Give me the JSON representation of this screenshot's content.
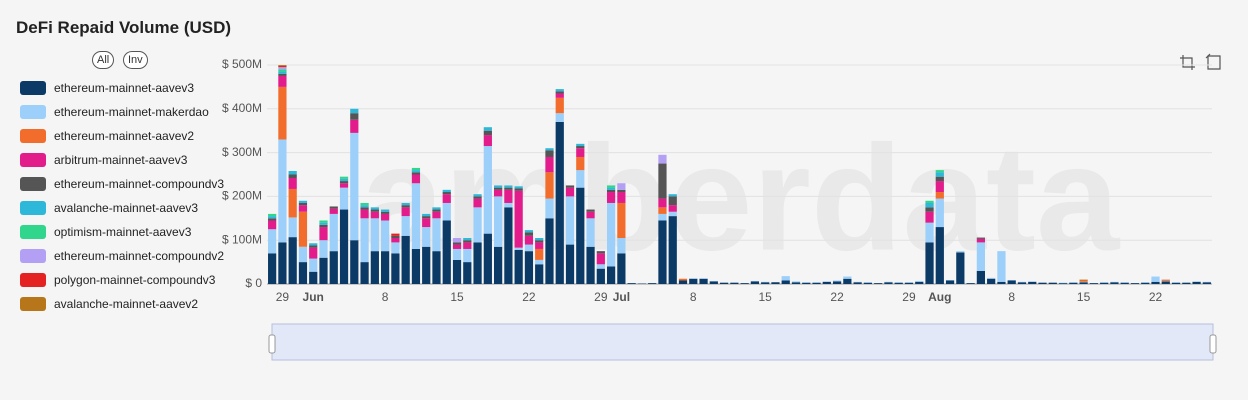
{
  "chart_data": {
    "type": "stacked_bar",
    "title": "DeFi Repaid Volume (USD)",
    "legend_buttons": [
      "All",
      "Inv"
    ],
    "watermark": "amberdata",
    "categories": [
      null,
      "29",
      null,
      null,
      "Jun",
      null,
      null,
      null,
      null,
      null,
      null,
      "8",
      null,
      null,
      null,
      null,
      null,
      null,
      "15",
      null,
      null,
      null,
      null,
      null,
      null,
      "22",
      null,
      null,
      null,
      null,
      null,
      null,
      "29",
      null,
      "Jul",
      null,
      null,
      null,
      null,
      null,
      null,
      "8",
      null,
      null,
      null,
      null,
      null,
      null,
      "15",
      null,
      null,
      null,
      null,
      null,
      null,
      "22",
      null,
      null,
      null,
      null,
      null,
      null,
      "29",
      null,
      null,
      "Aug",
      null,
      null,
      null,
      null,
      null,
      null,
      "8",
      null,
      null,
      null,
      null,
      null,
      null,
      "15",
      null,
      null,
      null,
      null,
      null,
      null,
      "22",
      null,
      null,
      null,
      null,
      null
    ],
    "ylim": [
      0,
      500
    ],
    "yticks": [
      {
        "value": 0,
        "label": "$ 0"
      },
      {
        "value": 100,
        "label": "$ 100M"
      },
      {
        "value": 200,
        "label": "$ 200M"
      },
      {
        "value": 300,
        "label": "$ 300M"
      },
      {
        "value": 400,
        "label": "$ 400M"
      },
      {
        "value": 500,
        "label": "$ 500M"
      }
    ],
    "grid": true,
    "series": [
      {
        "name": "ethereum-mainnet-aavev3",
        "color": "#0b3a67",
        "values": [
          70,
          95,
          107,
          50,
          28,
          60,
          75,
          170,
          100,
          50,
          75,
          75,
          70,
          110,
          80,
          85,
          75,
          145,
          55,
          50,
          95,
          115,
          85,
          175,
          78,
          75,
          45,
          150,
          370,
          90,
          220,
          85,
          35,
          40,
          70,
          2,
          1,
          2,
          145,
          155,
          8,
          12,
          12,
          6,
          3,
          3,
          2,
          6,
          4,
          4,
          8,
          4,
          3,
          3,
          5,
          6,
          12,
          4,
          3,
          2,
          4,
          3,
          3,
          5,
          95,
          130,
          8,
          72,
          2,
          30,
          12,
          5,
          8,
          4,
          5,
          3,
          3,
          2,
          3,
          4,
          2,
          3,
          4,
          3,
          2,
          3,
          5,
          6,
          3,
          3,
          5,
          4
        ]
      },
      {
        "name": "ethereum-mainnet-makerdao",
        "color": "#9ccffa",
        "values": [
          55,
          235,
          45,
          35,
          30,
          40,
          85,
          50,
          245,
          100,
          75,
          70,
          25,
          45,
          150,
          45,
          75,
          40,
          25,
          30,
          80,
          200,
          115,
          10,
          5,
          15,
          10,
          45,
          20,
          110,
          40,
          65,
          10,
          145,
          35,
          0,
          0,
          0,
          15,
          10,
          0,
          1,
          1,
          1,
          0,
          0,
          0,
          1,
          1,
          0,
          10,
          2,
          1,
          1,
          1,
          2,
          5,
          1,
          1,
          0,
          1,
          1,
          1,
          2,
          45,
          65,
          1,
          3,
          0,
          65,
          2,
          70,
          1,
          1,
          1,
          0,
          0,
          1,
          1,
          1,
          0,
          1,
          1,
          1,
          0,
          1,
          12,
          1,
          1,
          0,
          1,
          1
        ]
      },
      {
        "name": "ethereum-mainnet-aavev2",
        "color": "#f26d2b",
        "values": [
          0,
          120,
          65,
          80,
          0,
          0,
          0,
          0,
          0,
          0,
          0,
          0,
          0,
          0,
          0,
          0,
          0,
          0,
          0,
          0,
          0,
          0,
          0,
          0,
          0,
          0,
          25,
          60,
          35,
          0,
          30,
          0,
          0,
          0,
          80,
          0,
          0,
          0,
          15,
          0,
          4,
          0,
          0,
          0,
          0,
          0,
          0,
          0,
          0,
          0,
          0,
          0,
          0,
          0,
          0,
          0,
          0,
          0,
          0,
          0,
          0,
          0,
          0,
          0,
          0,
          15,
          0,
          0,
          0,
          0,
          0,
          0,
          0,
          0,
          0,
          0,
          0,
          0,
          0,
          3,
          0,
          0,
          0,
          0,
          0,
          0,
          0,
          3,
          0,
          0,
          0,
          0
        ]
      },
      {
        "name": "arbitrum-mainnet-aavev3",
        "color": "#e31c8c",
        "values": [
          20,
          25,
          25,
          15,
          25,
          30,
          12,
          10,
          30,
          20,
          15,
          15,
          10,
          20,
          20,
          20,
          15,
          20,
          10,
          15,
          20,
          25,
          15,
          30,
          130,
          20,
          15,
          35,
          10,
          20,
          20,
          15,
          25,
          25,
          25,
          0,
          0,
          0,
          20,
          15,
          0,
          0,
          0,
          0,
          0,
          0,
          0,
          0,
          0,
          0,
          0,
          0,
          0,
          0,
          0,
          0,
          0,
          0,
          0,
          0,
          0,
          0,
          0,
          0,
          25,
          25,
          0,
          0,
          0,
          8,
          0,
          0,
          0,
          0,
          0,
          0,
          0,
          0,
          0,
          0,
          0,
          0,
          0,
          0,
          0,
          0,
          0,
          0,
          0,
          0,
          0,
          0
        ]
      },
      {
        "name": "ethereum-mainnet-compoundv3",
        "color": "#555555",
        "values": [
          5,
          5,
          8,
          5,
          5,
          5,
          5,
          5,
          15,
          5,
          5,
          5,
          5,
          5,
          5,
          5,
          5,
          5,
          5,
          5,
          5,
          10,
          5,
          5,
          5,
          8,
          5,
          15,
          5,
          5,
          5,
          5,
          5,
          5,
          5,
          0,
          0,
          0,
          80,
          20,
          0,
          0,
          0,
          0,
          0,
          0,
          0,
          0,
          0,
          0,
          0,
          0,
          0,
          0,
          0,
          0,
          0,
          0,
          0,
          0,
          0,
          0,
          0,
          0,
          10,
          10,
          0,
          0,
          0,
          3,
          0,
          0,
          0,
          0,
          0,
          0,
          0,
          0,
          0,
          0,
          0,
          0,
          0,
          0,
          0,
          0,
          0,
          0,
          0,
          0,
          0,
          0
        ]
      },
      {
        "name": "avalanche-mainnet-aavev3",
        "color": "#2db7d9",
        "values": [
          5,
          5,
          8,
          5,
          5,
          5,
          0,
          5,
          10,
          5,
          5,
          5,
          0,
          5,
          5,
          5,
          5,
          5,
          0,
          5,
          5,
          8,
          5,
          5,
          5,
          5,
          5,
          5,
          5,
          0,
          5,
          0,
          0,
          5,
          0,
          0,
          0,
          0,
          0,
          5,
          0,
          0,
          0,
          0,
          0,
          0,
          0,
          0,
          0,
          0,
          0,
          0,
          0,
          0,
          0,
          0,
          0,
          0,
          0,
          0,
          0,
          0,
          0,
          0,
          10,
          10,
          0,
          0,
          0,
          0,
          0,
          0,
          0,
          0,
          0,
          0,
          0,
          0,
          0,
          0,
          0,
          0,
          0,
          0,
          0,
          0,
          0,
          0,
          0,
          0,
          0,
          0
        ]
      },
      {
        "name": "optimism-mainnet-aavev3",
        "color": "#2fd68b",
        "values": [
          5,
          5,
          0,
          0,
          0,
          5,
          0,
          5,
          0,
          5,
          0,
          0,
          0,
          0,
          5,
          0,
          0,
          0,
          0,
          0,
          0,
          0,
          0,
          0,
          0,
          0,
          0,
          0,
          0,
          0,
          0,
          0,
          0,
          5,
          0,
          0,
          0,
          0,
          0,
          0,
          0,
          0,
          0,
          0,
          0,
          0,
          0,
          0,
          0,
          0,
          0,
          0,
          0,
          0,
          0,
          0,
          0,
          0,
          0,
          0,
          0,
          0,
          0,
          0,
          5,
          5,
          0,
          0,
          0,
          0,
          0,
          0,
          0,
          0,
          0,
          0,
          0,
          0,
          0,
          0,
          0,
          0,
          0,
          0,
          0,
          0,
          0,
          0,
          0,
          0,
          0,
          0
        ]
      },
      {
        "name": "ethereum-mainnet-compoundv2",
        "color": "#b3a0f5",
        "values": [
          0,
          5,
          0,
          0,
          0,
          0,
          0,
          0,
          0,
          0,
          0,
          0,
          0,
          0,
          0,
          0,
          0,
          0,
          10,
          0,
          0,
          0,
          0,
          0,
          0,
          0,
          0,
          0,
          0,
          0,
          0,
          0,
          0,
          0,
          15,
          0,
          0,
          0,
          20,
          0,
          0,
          0,
          0,
          0,
          0,
          0,
          0,
          0,
          0,
          0,
          0,
          0,
          0,
          0,
          0,
          0,
          0,
          0,
          0,
          0,
          0,
          0,
          0,
          0,
          0,
          0,
          0,
          0,
          0,
          0,
          0,
          0,
          0,
          0,
          0,
          0,
          0,
          0,
          0,
          0,
          0,
          0,
          0,
          0,
          0,
          0,
          0,
          0,
          0,
          0,
          0,
          0
        ]
      },
      {
        "name": "polygon-mainnet-compoundv3",
        "color": "#e52222",
        "values": [
          0,
          3,
          0,
          0,
          0,
          0,
          0,
          0,
          0,
          0,
          0,
          0,
          5,
          0,
          0,
          0,
          0,
          0,
          0,
          0,
          0,
          0,
          0,
          0,
          0,
          0,
          0,
          0,
          0,
          0,
          0,
          0,
          0,
          0,
          0,
          0,
          0,
          0,
          0,
          0,
          0,
          0,
          0,
          0,
          0,
          0,
          0,
          0,
          0,
          0,
          0,
          0,
          0,
          0,
          0,
          0,
          0,
          0,
          0,
          0,
          0,
          0,
          0,
          0,
          0,
          0,
          0,
          0,
          0,
          0,
          0,
          0,
          0,
          0,
          0,
          0,
          0,
          0,
          0,
          0,
          0,
          0,
          0,
          0,
          0,
          0,
          0,
          0,
          0,
          0,
          0,
          0
        ]
      },
      {
        "name": "avalanche-mainnet-aavev2",
        "color": "#b8761a",
        "values": [
          0,
          2,
          0,
          0,
          0,
          0,
          0,
          0,
          0,
          0,
          0,
          0,
          0,
          0,
          0,
          0,
          0,
          0,
          0,
          0,
          0,
          0,
          0,
          0,
          0,
          0,
          0,
          0,
          0,
          0,
          0,
          0,
          0,
          0,
          0,
          0,
          0,
          0,
          0,
          0,
          0,
          0,
          0,
          0,
          0,
          0,
          0,
          0,
          0,
          0,
          0,
          0,
          0,
          0,
          0,
          0,
          0,
          0,
          0,
          0,
          0,
          0,
          0,
          0,
          0,
          0,
          0,
          0,
          0,
          0,
          0,
          0,
          0,
          0,
          0,
          0,
          0,
          0,
          0,
          2,
          0,
          0,
          0,
          0,
          0,
          0,
          0,
          0,
          0,
          0,
          0,
          0
        ]
      }
    ]
  }
}
